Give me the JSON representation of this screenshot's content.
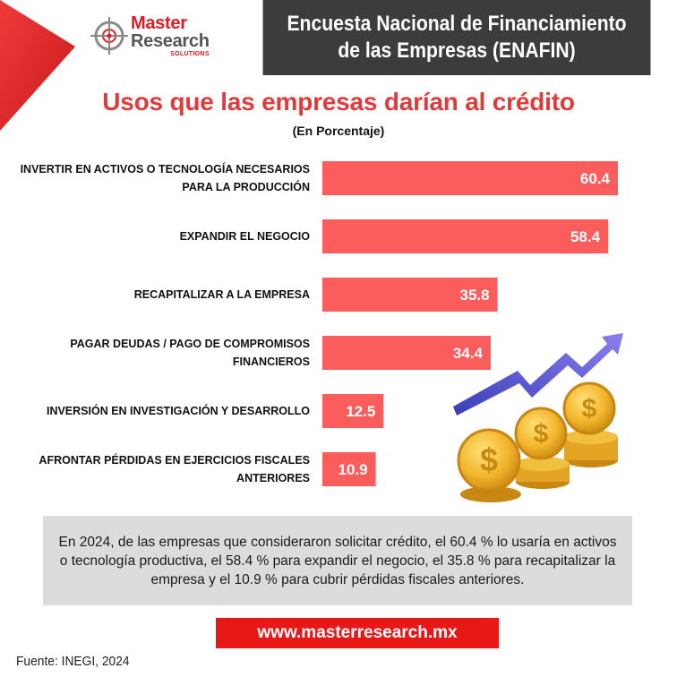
{
  "brand": {
    "name_line1": "Master",
    "name_line2": "Research",
    "tagline": "SOLUTIONS",
    "accent_color": "#e31b23"
  },
  "header": {
    "title_line1": "Encuesta Nacional de Financiamiento",
    "title_line2": "de las Empresas (ENAFIN)"
  },
  "chart_data": {
    "type": "bar",
    "orientation": "horizontal",
    "title": "Usos que las empresas darían al crédito",
    "subtitle": "(En Porcentaje)",
    "categories": [
      [
        "INVERTIR EN ACTIVOS O TECNOLOGÍA NECESARIOS",
        "PARA LA PRODUCCIÓN"
      ],
      [
        "EXPANDIR EL NEGOCIO"
      ],
      [
        "RECAPITALIZAR A LA EMPRESA"
      ],
      [
        "PAGAR DEUDAS / PAGO DE COMPROMISOS",
        "FINANCIEROS"
      ],
      [
        "INVERSIÓN EN INVESTIGACIÓN Y DESARROLLO"
      ],
      [
        "AFRONTAR PÉRDIDAS EN EJERCICIOS FISCALES",
        "ANTERIORES"
      ]
    ],
    "values": [
      60.4,
      58.4,
      35.8,
      34.4,
      12.5,
      10.9
    ],
    "value_labels": [
      "60.4",
      "58.4",
      "35.8",
      "34.4",
      "12.5",
      "10.9"
    ],
    "bar_color": "#fb5c5c",
    "xlim": [
      0,
      100
    ],
    "grid": false,
    "legend": "none"
  },
  "note": "En 2024, de las empresas que consideraron solicitar crédito, el 60.4 % lo usaría en activos o tecnología productiva, el 58.4 % para expandir el negocio, el 35.8 % para recapitalizar la empresa y el 10.9 % para cubrir pérdidas fiscales anteriores.",
  "website": "www.masterresearch.mx",
  "source": "Fuente: INEGI, 2024",
  "icons": [
    "crosshair-logo-icon",
    "growth-arrow-icon",
    "dollar-coins-icon"
  ]
}
